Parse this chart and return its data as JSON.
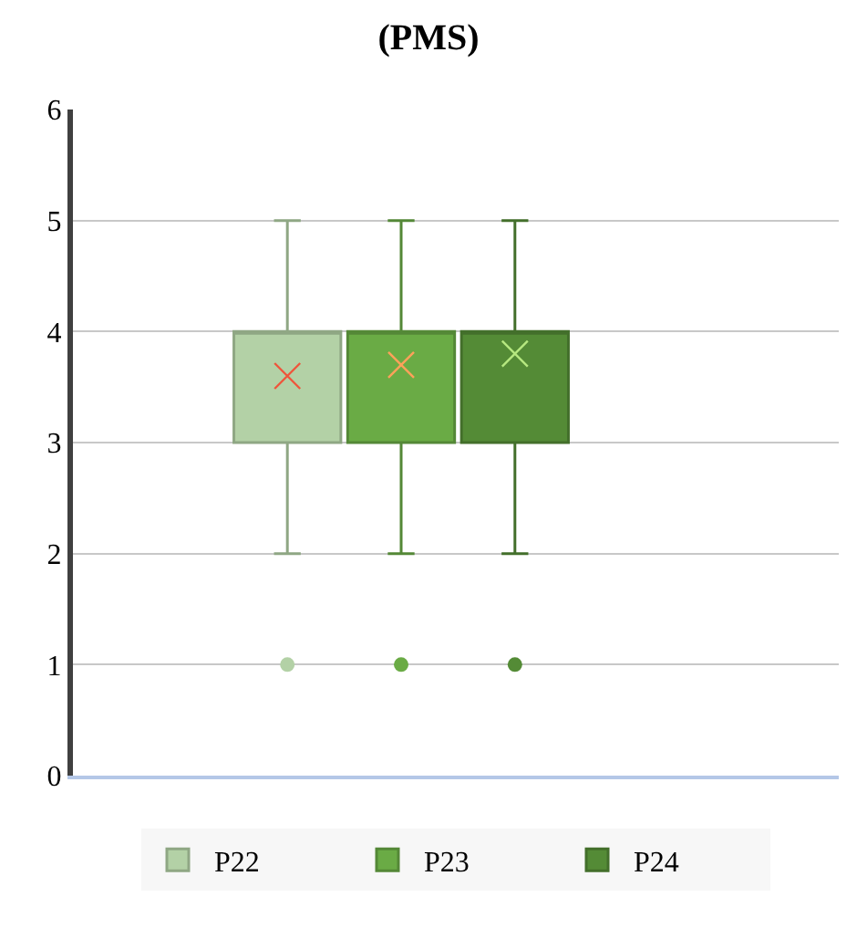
{
  "chart_data": {
    "type": "box",
    "title": "(PMS)",
    "categories": [
      null
    ],
    "series": [
      {
        "name": "P22",
        "color": "#b3d1a6",
        "boxes": [
          {
            "low": 2,
            "q1": 3,
            "median": 4,
            "q3": 4,
            "high": 5,
            "mean": 3.6,
            "outliers": [
              1
            ]
          }
        ]
      },
      {
        "name": "P23",
        "color": "#6aab45",
        "boxes": [
          {
            "low": 2,
            "q1": 3,
            "median": 4,
            "q3": 4,
            "high": 5,
            "mean": 3.7,
            "outliers": [
              1
            ]
          }
        ]
      },
      {
        "name": "P24",
        "color": "#548b36",
        "boxes": [
          {
            "low": 2,
            "q1": 3,
            "median": 4,
            "q3": 4,
            "high": 5,
            "mean": 3.8,
            "outliers": [
              1
            ]
          }
        ]
      }
    ],
    "ylim": [
      0,
      6
    ],
    "yticks": [
      0,
      1,
      2,
      3,
      4,
      5,
      6
    ],
    "grid": "y",
    "legend": "bottom"
  }
}
